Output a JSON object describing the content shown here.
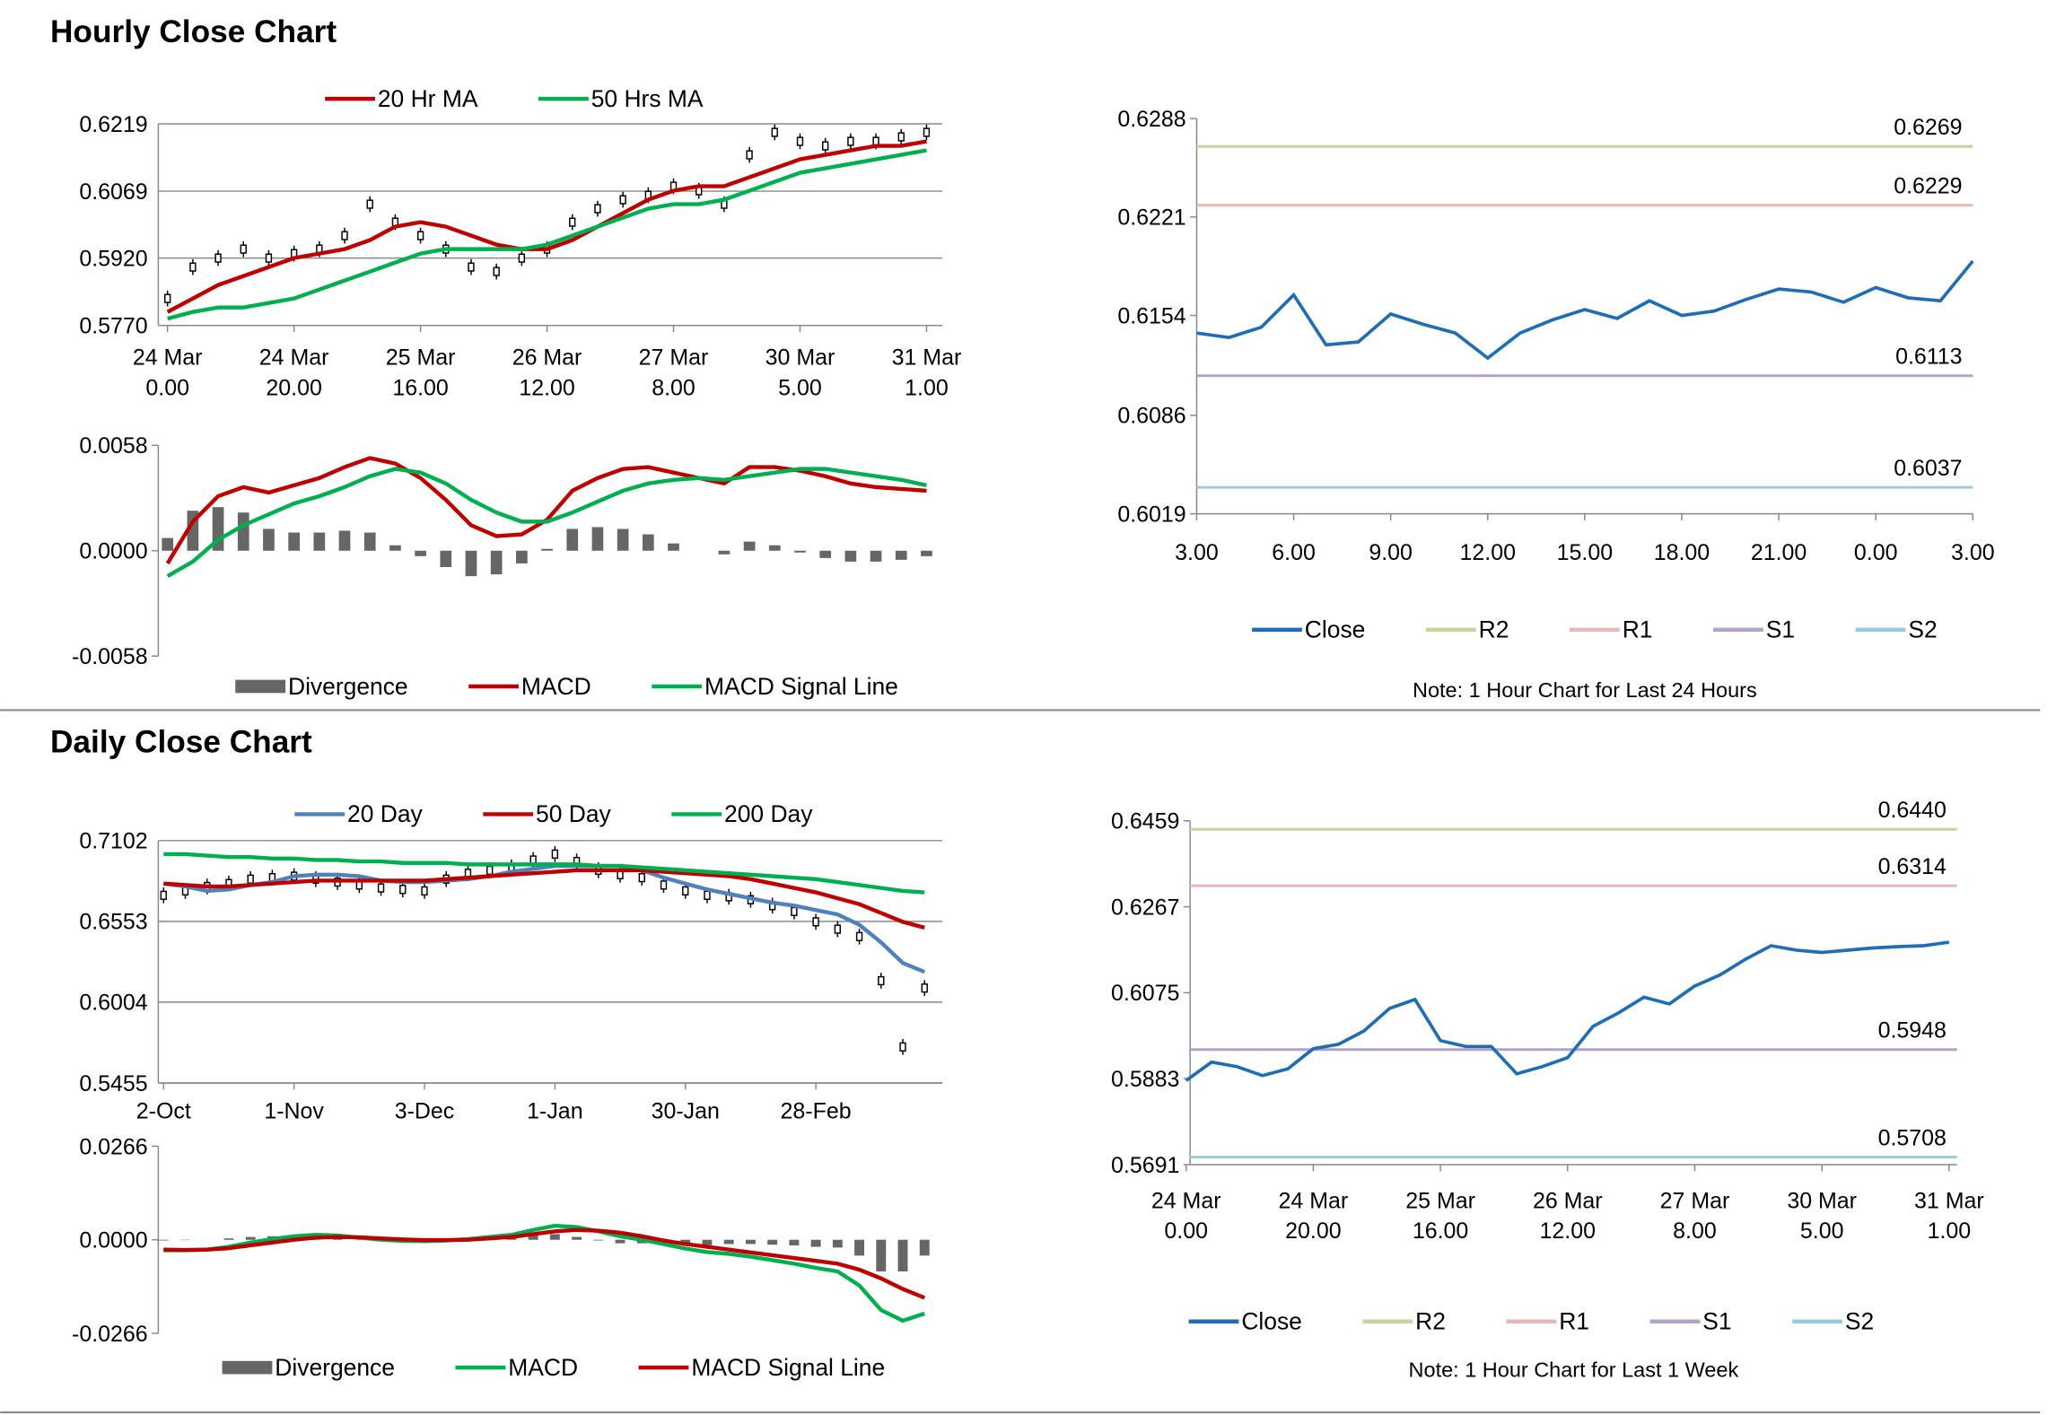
{
  "headings": [
    "Hourly Close Chart",
    "Daily Close Chart"
  ],
  "chart_data": [
    {
      "type": "line",
      "grid": true,
      "categories": [
        [
          "24 Mar",
          "0.00"
        ],
        null,
        null,
        null,
        null,
        [
          "24 Mar",
          "20.00"
        ],
        null,
        null,
        null,
        null,
        [
          "25 Mar",
          "16.00"
        ],
        null,
        null,
        null,
        null,
        [
          "26 Mar",
          "12.00"
        ],
        null,
        null,
        null,
        null,
        [
          "27 Mar",
          "8.00"
        ],
        null,
        null,
        null,
        null,
        [
          "30 Mar",
          "5.00"
        ],
        null,
        null,
        null,
        null,
        [
          "31 Mar",
          "1.00"
        ]
      ],
      "ylim": [
        0.577,
        0.6219
      ],
      "yticks": [
        {
          "value": 0.577,
          "label": "0.5770"
        },
        {
          "value": 0.592,
          "label": "0.5920"
        },
        0.6069,
        0.6219
      ],
      "series": [
        {
          "type": "candle",
          "color": "#000000",
          "values": [
            0.583,
            0.59,
            0.592,
            0.594,
            0.592,
            0.593,
            0.594,
            0.597,
            0.604,
            0.6,
            0.597,
            0.594,
            0.59,
            0.589,
            0.592,
            0.594,
            0.6,
            0.603,
            0.605,
            0.606,
            0.608,
            0.607,
            0.604,
            0.615,
            0.62,
            0.618,
            0.617,
            0.618,
            0.618,
            0.619,
            0.62
          ]
        },
        {
          "name": "20 Hr MA",
          "type": "line",
          "color": "#c00000",
          "values": [
            0.58,
            0.583,
            0.586,
            0.588,
            0.59,
            0.592,
            0.593,
            0.594,
            0.596,
            0.599,
            0.6,
            0.599,
            0.597,
            0.595,
            0.594,
            0.594,
            0.596,
            0.599,
            0.602,
            0.605,
            0.607,
            0.608,
            0.608,
            0.61,
            0.612,
            0.614,
            0.615,
            0.616,
            0.617,
            0.617,
            0.618
          ]
        },
        {
          "name": "50 Hrs MA",
          "type": "line",
          "color": "#00b050",
          "values": [
            0.5785,
            0.58,
            0.581,
            0.581,
            0.582,
            0.583,
            0.585,
            0.587,
            0.589,
            0.591,
            0.593,
            0.594,
            0.594,
            0.594,
            0.594,
            0.595,
            0.597,
            0.599,
            0.601,
            0.603,
            0.604,
            0.604,
            0.605,
            0.607,
            0.609,
            0.611,
            0.612,
            0.613,
            0.614,
            0.615,
            0.616
          ]
        }
      ]
    },
    {
      "type": "line",
      "grid": false,
      "ylim": [
        -0.0058,
        0.0058
      ],
      "yticks": [
        -0.0058,
        {
          "value": 0,
          "label": "0.0000"
        },
        0.0058
      ],
      "series": [
        {
          "name": "Divergence",
          "type": "bar",
          "color": "#666666",
          "values": [
            0.0007,
            0.0022,
            0.0024,
            0.0021,
            0.0012,
            0.001,
            0.001,
            0.0011,
            0.001,
            0.0003,
            -0.0003,
            -0.0009,
            -0.0014,
            -0.0013,
            -0.0007,
            0.0001,
            0.0012,
            0.0013,
            0.0012,
            0.0009,
            0.0004,
            0,
            -0.0002,
            0.0005,
            0.0003,
            -0.0001,
            -0.0004,
            -0.0006,
            -0.0006,
            -0.0005,
            -0.0003
          ]
        },
        {
          "name": "MACD",
          "type": "line",
          "color": "#c00000",
          "values": [
            -0.0007,
            0.0016,
            0.003,
            0.0035,
            0.0032,
            0.0036,
            0.004,
            0.0046,
            0.0051,
            0.0048,
            0.004,
            0.0028,
            0.0014,
            0.0008,
            0.0009,
            0.0017,
            0.0033,
            0.004,
            0.0045,
            0.0046,
            0.0043,
            0.004,
            0.0037,
            0.0046,
            0.0046,
            0.0044,
            0.0041,
            0.0037,
            0.0035,
            0.0034,
            0.0033
          ]
        },
        {
          "name": "MACD Signal Line",
          "type": "line",
          "color": "#00b050",
          "values": [
            -0.0014,
            -0.0006,
            0.0006,
            0.0014,
            0.002,
            0.0026,
            0.003,
            0.0035,
            0.0041,
            0.0045,
            0.0043,
            0.0037,
            0.0028,
            0.0021,
            0.0016,
            0.0016,
            0.0021,
            0.0027,
            0.0033,
            0.0037,
            0.0039,
            0.004,
            0.0039,
            0.0041,
            0.0043,
            0.0045,
            0.0045,
            0.0043,
            0.0041,
            0.0039,
            0.0036
          ]
        }
      ]
    },
    {
      "type": "line",
      "grid": false,
      "note": "Note: 1 Hour Chart for Last 24 Hours",
      "categories": [
        "3.00",
        null,
        null,
        "6.00",
        null,
        null,
        "9.00",
        null,
        null,
        "12.00",
        null,
        null,
        "15.00",
        null,
        null,
        "18.00",
        null,
        null,
        "21.00",
        null,
        null,
        "0.00",
        null,
        null,
        "3.00"
      ],
      "ylim": [
        0.6019,
        0.6288
      ],
      "yticks": [
        0.6019,
        0.6086,
        0.6154,
        0.6221,
        0.6288
      ],
      "series": [
        {
          "name": "Close",
          "type": "line",
          "color": "#1f6eb5",
          "values": [
            0.6142,
            0.6139,
            0.6146,
            0.6168,
            0.6134,
            0.6136,
            0.6155,
            0.6148,
            0.6142,
            0.6125,
            0.6142,
            0.6151,
            0.6158,
            0.6152,
            0.6164,
            0.6154,
            0.6157,
            0.6165,
            0.6172,
            0.617,
            0.6163,
            0.6173,
            0.6166,
            0.6164,
            0.6191
          ]
        }
      ],
      "levels": [
        {
          "name": "R2",
          "value": 0.6269,
          "color": "#c3d69b"
        },
        {
          "name": "R1",
          "value": 0.6229,
          "color": "#e6b9b8"
        },
        {
          "name": "S1",
          "value": 0.6113,
          "color": "#b3a2c7"
        },
        {
          "name": "S2",
          "value": 0.6037,
          "color": "#93cddd"
        }
      ]
    },
    {
      "type": "line",
      "grid": true,
      "categories": [
        "2-Oct",
        null,
        null,
        null,
        null,
        null,
        "1-Nov",
        null,
        null,
        null,
        null,
        null,
        "3-Dec",
        null,
        null,
        null,
        null,
        null,
        "1-Jan",
        null,
        null,
        null,
        null,
        null,
        "30-Jan",
        null,
        null,
        null,
        null,
        null,
        "28-Feb",
        null,
        null,
        null,
        null,
        null
      ],
      "ylim": [
        0.5455,
        0.7102
      ],
      "yticks": [
        0.5455,
        0.6004,
        0.6553,
        0.7102
      ],
      "series": [
        {
          "type": "candle",
          "color": "#000000",
          "values": [
            0.673,
            0.676,
            0.679,
            0.681,
            0.684,
            0.685,
            0.686,
            0.684,
            0.682,
            0.68,
            0.678,
            0.677,
            0.676,
            0.684,
            0.688,
            0.69,
            0.692,
            0.697,
            0.701,
            0.696,
            0.69,
            0.687,
            0.685,
            0.68,
            0.676,
            0.673,
            0.672,
            0.67,
            0.666,
            0.662,
            0.655,
            0.65,
            0.645,
            0.615,
            0.57,
            0.61
          ]
        },
        {
          "name": "20 Day",
          "type": "line",
          "color": "#4f81bd",
          "values": [
            0.681,
            0.679,
            0.676,
            0.677,
            0.68,
            0.682,
            0.686,
            0.687,
            0.687,
            0.686,
            0.683,
            0.682,
            0.682,
            0.683,
            0.684,
            0.686,
            0.689,
            0.691,
            0.693,
            0.693,
            0.693,
            0.693,
            0.69,
            0.685,
            0.681,
            0.677,
            0.674,
            0.671,
            0.668,
            0.666,
            0.663,
            0.66,
            0.653,
            0.641,
            0.627,
            0.621
          ]
        },
        {
          "name": "50 Day",
          "type": "line",
          "color": "#c00000",
          "values": [
            0.681,
            0.68,
            0.679,
            0.679,
            0.68,
            0.681,
            0.682,
            0.683,
            0.683,
            0.683,
            0.683,
            0.683,
            0.683,
            0.684,
            0.685,
            0.686,
            0.687,
            0.688,
            0.689,
            0.69,
            0.69,
            0.69,
            0.69,
            0.689,
            0.688,
            0.687,
            0.686,
            0.684,
            0.681,
            0.678,
            0.675,
            0.671,
            0.667,
            0.661,
            0.655,
            0.651
          ]
        },
        {
          "name": "200 Day",
          "type": "line",
          "color": "#00b050",
          "values": [
            0.701,
            0.701,
            0.7,
            0.699,
            0.699,
            0.698,
            0.698,
            0.697,
            0.697,
            0.696,
            0.696,
            0.695,
            0.695,
            0.695,
            0.694,
            0.694,
            0.694,
            0.694,
            0.694,
            0.694,
            0.693,
            0.693,
            0.692,
            0.691,
            0.69,
            0.689,
            0.688,
            0.687,
            0.686,
            0.685,
            0.684,
            0.682,
            0.68,
            0.678,
            0.676,
            0.675
          ]
        }
      ]
    },
    {
      "type": "line",
      "grid": false,
      "ylim": [
        -0.0266,
        0.0266
      ],
      "yticks": [
        -0.0266,
        {
          "value": 0,
          "label": "0.0000"
        },
        0.0266
      ],
      "series": [
        {
          "name": "Divergence",
          "type": "bar",
          "color": "#666666",
          "values": [
            -0.0002,
            -0.0001,
            0,
            0.0004,
            0.0008,
            0.001,
            0.001,
            0.0008,
            0.0004,
            -0.0001,
            -0.0004,
            -0.0004,
            -0.0003,
            -0.0001,
            0.0002,
            0.0004,
            0.0006,
            0.0012,
            0.0016,
            0.0008,
            -0.0002,
            -0.001,
            -0.001,
            -0.001,
            -0.0013,
            -0.0015,
            -0.0012,
            -0.0012,
            -0.0014,
            -0.0016,
            -0.002,
            -0.0022,
            -0.0045,
            -0.009,
            -0.009,
            -0.0045
          ]
        },
        {
          "name": "MACD",
          "type": "line",
          "color": "#00b050",
          "values": [
            -0.003,
            -0.003,
            -0.0028,
            -0.002,
            -0.0008,
            0.0002,
            0.001,
            0.0014,
            0.0012,
            0.0006,
            0,
            -0.0003,
            -0.0004,
            -0.0002,
            0.0002,
            0.0008,
            0.0014,
            0.0028,
            0.004,
            0.0036,
            0.0024,
            0.001,
            0,
            -0.0012,
            -0.0025,
            -0.0035,
            -0.004,
            -0.0048,
            -0.0058,
            -0.0068,
            -0.008,
            -0.009,
            -0.013,
            -0.02,
            -0.023,
            -0.021
          ]
        },
        {
          "name": "MACD Signal Line",
          "type": "line",
          "color": "#c00000",
          "values": [
            -0.0028,
            -0.0029,
            -0.0028,
            -0.0024,
            -0.0016,
            -0.0008,
            0,
            0.0006,
            0.0008,
            0.0007,
            0.0004,
            0.0001,
            -0.0001,
            -0.0001,
            0,
            0.0004,
            0.0008,
            0.0016,
            0.0024,
            0.0028,
            0.0026,
            0.002,
            0.001,
            -0.0002,
            -0.0012,
            -0.002,
            -0.0028,
            -0.0036,
            -0.0044,
            -0.0052,
            -0.006,
            -0.0068,
            -0.0085,
            -0.011,
            -0.014,
            -0.0165
          ]
        }
      ]
    },
    {
      "type": "line",
      "grid": false,
      "note": "Note: 1 Hour Chart for Last 1 Week",
      "categories": [
        [
          "24 Mar",
          "0.00"
        ],
        null,
        null,
        null,
        null,
        [
          "24 Mar",
          "20.00"
        ],
        null,
        null,
        null,
        null,
        [
          "25 Mar",
          "16.00"
        ],
        null,
        null,
        null,
        null,
        [
          "26 Mar",
          "12.00"
        ],
        null,
        null,
        null,
        null,
        [
          "27 Mar",
          "8.00"
        ],
        null,
        null,
        null,
        null,
        [
          "30 Mar",
          "5.00"
        ],
        null,
        null,
        null,
        null,
        [
          "31 Mar",
          "1.00"
        ]
      ],
      "ylim": [
        0.5691,
        0.6459
      ],
      "yticks": [
        0.5691,
        0.5883,
        0.6075,
        0.6267,
        0.6459
      ],
      "series": [
        {
          "name": "Close",
          "type": "line",
          "color": "#1f6eb5",
          "values": [
            0.5879,
            0.592,
            0.591,
            0.589,
            0.5905,
            0.595,
            0.596,
            0.599,
            0.604,
            0.606,
            0.5968,
            0.5955,
            0.5955,
            0.5894,
            0.591,
            0.593,
            0.6,
            0.603,
            0.6065,
            0.605,
            0.609,
            0.6115,
            0.615,
            0.618,
            0.617,
            0.6165,
            0.617,
            0.6175,
            0.6178,
            0.618,
            0.6188
          ]
        }
      ],
      "levels": [
        {
          "name": "R2",
          "value": 0.644,
          "label": "0.6440",
          "color": "#c3d69b"
        },
        {
          "name": "R1",
          "value": 0.6314,
          "color": "#e6b9b8"
        },
        {
          "name": "S1",
          "value": 0.5948,
          "color": "#b3a2c7"
        },
        {
          "name": "S2",
          "value": 0.5708,
          "color": "#93cddd"
        }
      ]
    }
  ]
}
